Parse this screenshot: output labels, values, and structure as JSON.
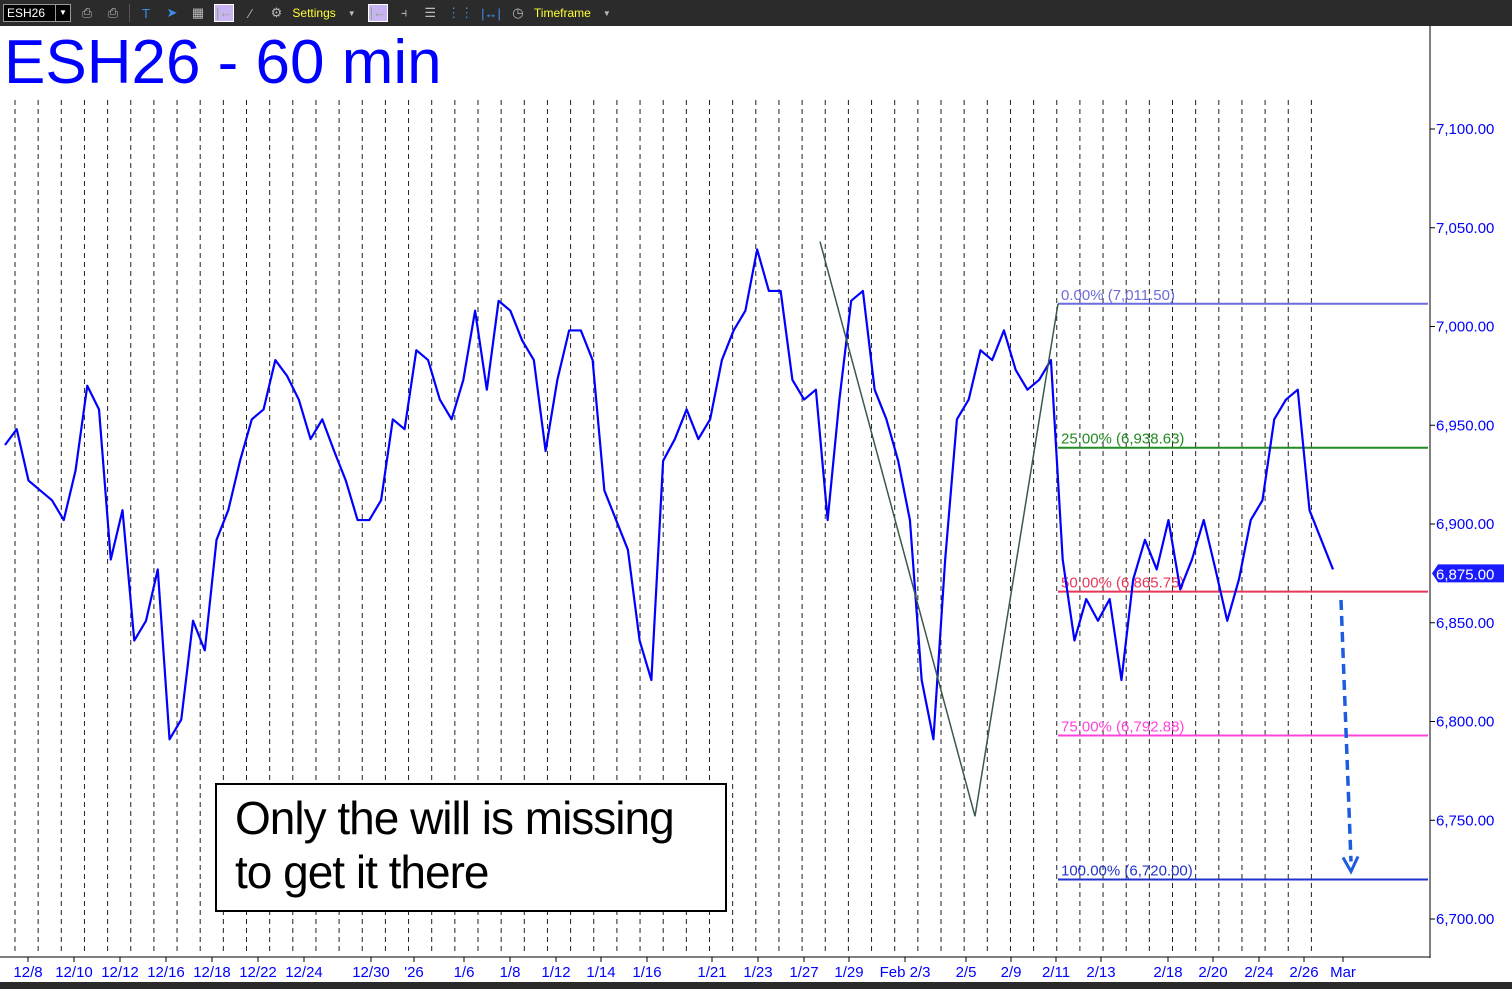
{
  "toolbar": {
    "symbol": "ESH26",
    "settings_label": "Settings",
    "timeframe_label": "Timeframe"
  },
  "chart_data": {
    "type": "line",
    "title": "ESH26 - 60 min",
    "x_tick_labels": [
      "12/8",
      "12/10",
      "12/12",
      "12/16",
      "12/18",
      "12/22",
      "12/24",
      "12/30",
      "'26",
      "1/6",
      "1/8",
      "1/12",
      "1/14",
      "1/16",
      "1/21",
      "1/23",
      "1/27",
      "1/29",
      "Feb 2/3",
      "2/5",
      "2/9",
      "2/11",
      "2/13",
      "2/18",
      "2/20",
      "2/24",
      "2/26",
      "Mar"
    ],
    "y_tick_labels": [
      "7,100.00",
      "7,050.00",
      "7,000.00",
      "6,950.00",
      "6,900.00",
      "6,850.00",
      "6,800.00",
      "6,750.00",
      "6,700.00"
    ],
    "ylim": [
      6680,
      7120
    ],
    "series": [
      {
        "color": "#0000ff",
        "values": [
          6940,
          6948,
          6922,
          6917,
          6912,
          6902,
          6927,
          6970,
          6958,
          6882,
          6907,
          6841,
          6851,
          6877,
          6791,
          6801,
          6851,
          6836,
          6892,
          6907,
          6932,
          6953,
          6958,
          6983,
          6975,
          6963,
          6943,
          6953,
          6937,
          6922,
          6902,
          6902,
          6912,
          6953,
          6948,
          6988,
          6983,
          6963,
          6953,
          6973,
          7008,
          6968,
          7013,
          7008,
          6993,
          6983,
          6937,
          6973,
          6998,
          6998,
          6983,
          6917,
          6902,
          6887,
          6841,
          6821,
          6932,
          6943,
          6958,
          6943,
          6953,
          6983,
          6998,
          7008,
          7039,
          7018,
          7018,
          6973,
          6963,
          6968,
          6902,
          6963,
          7013,
          7018,
          6968,
          6953,
          6932,
          6902,
          6821,
          6791,
          6882,
          6953,
          6963,
          6988,
          6983,
          6998,
          6978,
          6968,
          6973,
          6983,
          6882,
          6841,
          6862,
          6851,
          6862,
          6821,
          6872,
          6892,
          6877,
          6902,
          6867,
          6882,
          6902,
          6877,
          6851,
          6872,
          6902,
          6912,
          6953,
          6963,
          6968,
          6907,
          6892,
          6877
        ]
      }
    ],
    "last_price": "6,875.00",
    "zigzag": [
      7043,
      6752,
      7011.5
    ],
    "fib_levels": [
      {
        "label": "0.00% (7,011.50)",
        "price": 7011.5,
        "color": "#6c6cdc"
      },
      {
        "label": "25.00% (6,938.63)",
        "price": 6938.63,
        "color": "#228b22"
      },
      {
        "label": "50.00% (6,865.75)",
        "price": 6865.75,
        "color": "#e8365a"
      },
      {
        "label": "75.00% (6,792.88)",
        "price": 6792.88,
        "color": "#ff44dd"
      },
      {
        "label": "100.00% (6,720.00)",
        "price": 6720,
        "color": "#2233cc"
      }
    ],
    "projection_target": 6720,
    "grid": "vertical dashed"
  },
  "annotation": {
    "line1": "Only the will is missing",
    "line2": "to get it there"
  }
}
